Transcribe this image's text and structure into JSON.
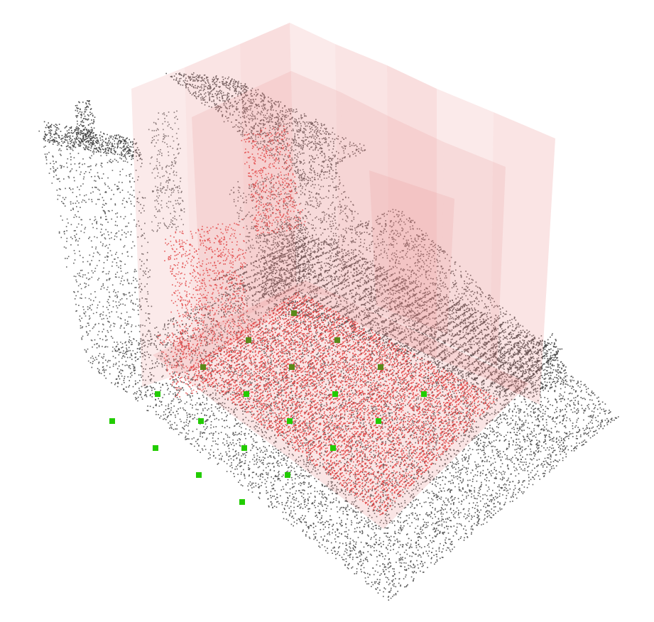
{
  "scene": {
    "background": "#ffffff",
    "point_colors": {
      "scene": "#3a3a3a",
      "selected": "#e03a3a",
      "sample": "#22cc00",
      "sample_shade": "#5a8a1a"
    },
    "box_fill": "#e88a8a",
    "samples": {
      "rows": 5,
      "cols": 4,
      "count": 20
    }
  }
}
